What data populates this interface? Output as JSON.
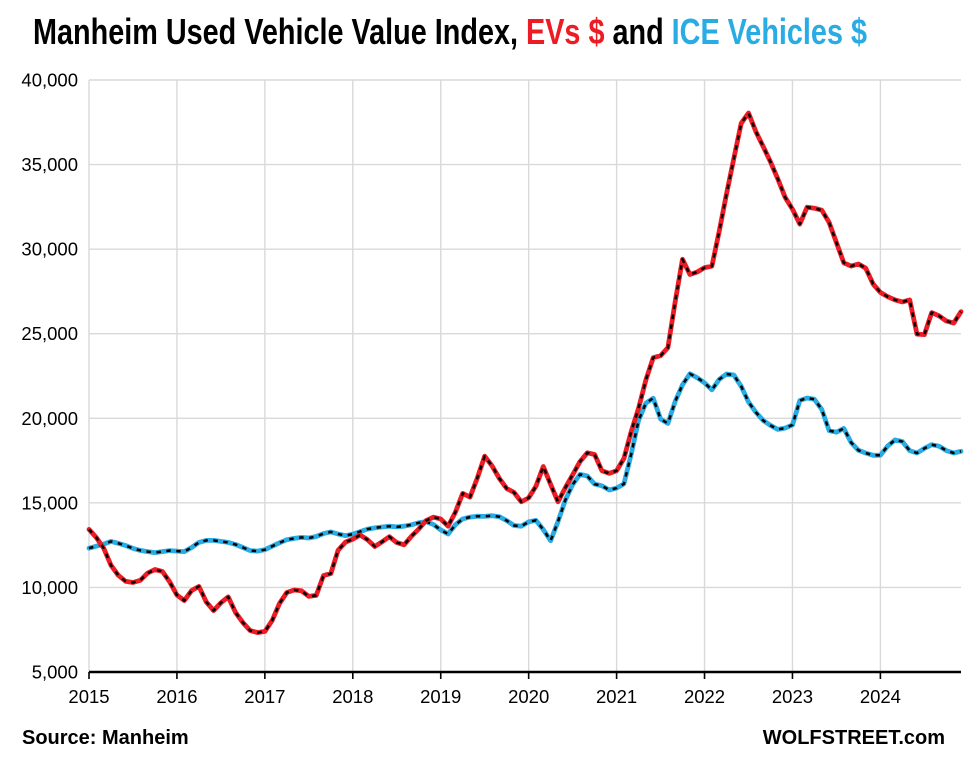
{
  "title": {
    "prefix": "Manheim Used Vehicle Value Index, ",
    "ev_label": "EVs $",
    "connector": " and ",
    "ice_label": "ICE Vehicles $"
  },
  "footer": {
    "source": "Source: Manheim",
    "site": "WOLFSTREET.com"
  },
  "colors": {
    "ev": "#ed1c24",
    "ice": "#29ace4",
    "gridline": "#d9d9d9",
    "axis": "#000000",
    "marker_overlay": "#000000",
    "text": "#000000"
  },
  "chart_data": {
    "type": "line",
    "title": "Manheim Used Vehicle Value Index, EVs $ and ICE Vehicles $",
    "x_unit": "month",
    "x_start": "2015-01",
    "x_end": "2024-12",
    "x_tick_labels": [
      "2015",
      "2016",
      "2017",
      "2018",
      "2019",
      "2020",
      "2021",
      "2022",
      "2023",
      "2024"
    ],
    "y_ticks": [
      5000,
      10000,
      15000,
      20000,
      25000,
      30000,
      35000,
      40000
    ],
    "y_tick_labels": [
      "5,000",
      "10,000",
      "15,000",
      "20,000",
      "25,000",
      "30,000",
      "35,000",
      "40,000"
    ],
    "ylim": [
      5000,
      40000
    ],
    "grid": true,
    "legend": "in-title",
    "line_style": "thick colored line with black dashed overlay",
    "series": [
      {
        "name": "EVs $",
        "key": "ev",
        "color": "#ed1c24",
        "values": [
          13430,
          12950,
          12320,
          11310,
          10720,
          10360,
          10290,
          10420,
          10850,
          11060,
          10950,
          10340,
          9550,
          9220,
          9810,
          10060,
          9150,
          8630,
          9100,
          9440,
          8510,
          7920,
          7450,
          7330,
          7400,
          8050,
          9050,
          9700,
          9850,
          9800,
          9470,
          9530,
          10700,
          10820,
          12200,
          12680,
          12860,
          13100,
          12820,
          12420,
          12700,
          13000,
          12650,
          12520,
          13020,
          13450,
          13950,
          14150,
          14050,
          13620,
          14450,
          15560,
          15340,
          16480,
          17760,
          17190,
          16440,
          15850,
          15620,
          15060,
          15300,
          15990,
          17150,
          16100,
          15060,
          15890,
          16650,
          17440,
          17960,
          17860,
          16900,
          16740,
          16900,
          17620,
          19230,
          20600,
          22270,
          23580,
          23700,
          24180,
          26900,
          29400,
          28500,
          28650,
          28900,
          29000,
          31050,
          33260,
          35350,
          37440,
          38050,
          36960,
          36060,
          35160,
          34150,
          33070,
          32360,
          31480,
          32480,
          32420,
          32300,
          31580,
          30390,
          29190,
          29000,
          29120,
          28880,
          27940,
          27440,
          27190,
          27000,
          26880,
          27000,
          24980,
          24950,
          26250,
          26060,
          25750,
          25630,
          26300
        ]
      },
      {
        "name": "ICE Vehicles $",
        "key": "ice",
        "color": "#29ace4",
        "values": [
          12320,
          12440,
          12560,
          12720,
          12610,
          12480,
          12310,
          12190,
          12120,
          12060,
          12120,
          12180,
          12150,
          12120,
          12360,
          12660,
          12780,
          12780,
          12720,
          12660,
          12540,
          12360,
          12180,
          12150,
          12230,
          12440,
          12640,
          12820,
          12900,
          12960,
          12920,
          13010,
          13180,
          13280,
          13160,
          13060,
          13150,
          13300,
          13450,
          13520,
          13570,
          13620,
          13580,
          13620,
          13700,
          13820,
          13890,
          13720,
          13400,
          13160,
          13700,
          14050,
          14160,
          14210,
          14200,
          14240,
          14180,
          13950,
          13660,
          13620,
          13880,
          13960,
          13420,
          12760,
          13900,
          15160,
          16080,
          16680,
          16590,
          16110,
          16010,
          15760,
          15870,
          16120,
          17900,
          19880,
          20900,
          21190,
          19950,
          19700,
          21000,
          21980,
          22630,
          22400,
          22100,
          21680,
          22300,
          22620,
          22560,
          21890,
          20960,
          20360,
          19870,
          19580,
          19340,
          19420,
          19610,
          21050,
          21200,
          21120,
          20520,
          19270,
          19180,
          19400,
          18570,
          18110,
          17950,
          17810,
          17820,
          18360,
          18720,
          18620,
          18090,
          17950,
          18220,
          18440,
          18350,
          18090,
          17950,
          18050
        ]
      }
    ]
  }
}
